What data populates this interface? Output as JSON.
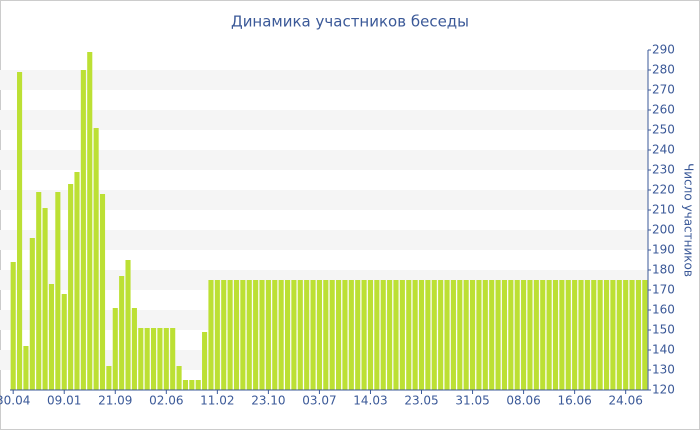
{
  "chart_data": {
    "type": "bar",
    "title": "Динамика участников беседы",
    "y_label": "Число участников",
    "categories": [
      "30.04",
      null,
      null,
      null,
      null,
      null,
      null,
      null,
      "09.01",
      null,
      null,
      null,
      null,
      null,
      null,
      null,
      "21.09",
      null,
      null,
      null,
      null,
      null,
      null,
      null,
      "02.06",
      null,
      null,
      null,
      null,
      null,
      null,
      null,
      "11.02",
      null,
      null,
      null,
      null,
      null,
      null,
      null,
      "23.10",
      null,
      null,
      null,
      null,
      null,
      null,
      null,
      "03.07",
      null,
      null,
      null,
      null,
      null,
      null,
      null,
      "14.03",
      null,
      null,
      null,
      null,
      null,
      null,
      null,
      "23.05",
      null,
      null,
      null,
      null,
      null,
      null,
      null,
      "31.05",
      null,
      null,
      null,
      null,
      null,
      null,
      null,
      "08.06",
      null,
      null,
      null,
      null,
      null,
      null,
      null,
      "16.06",
      null,
      null,
      null,
      null,
      null,
      null,
      null,
      "24.06",
      null,
      null,
      null
    ],
    "values": [
      184,
      279,
      142,
      196,
      219,
      211,
      173,
      219,
      168,
      223,
      229,
      280,
      289,
      251,
      218,
      132,
      161,
      177,
      185,
      161,
      151,
      151,
      151,
      151,
      151,
      151,
      132,
      125,
      125,
      125,
      149,
      175,
      175,
      175,
      175,
      175,
      175,
      175,
      175,
      175,
      175,
      175,
      175,
      175,
      175,
      175,
      175,
      175,
      175,
      175,
      175,
      175,
      175,
      175,
      175,
      175,
      175,
      175,
      175,
      175,
      175,
      175,
      175,
      175,
      175,
      175,
      175,
      175,
      175,
      175,
      175,
      175,
      175,
      175,
      175,
      175,
      175,
      175,
      175,
      175,
      175,
      175,
      175,
      175,
      175,
      175,
      175,
      175,
      175,
      175,
      175,
      175,
      175,
      175,
      175,
      175,
      175,
      175,
      175,
      175
    ],
    "color": "#bce034",
    "ylim": [
      120,
      290
    ],
    "yticks": [
      120,
      130,
      140,
      150,
      160,
      170,
      180,
      190,
      200,
      210,
      220,
      230,
      240,
      250,
      260,
      270,
      280,
      290
    ],
    "grid": "stripes"
  }
}
